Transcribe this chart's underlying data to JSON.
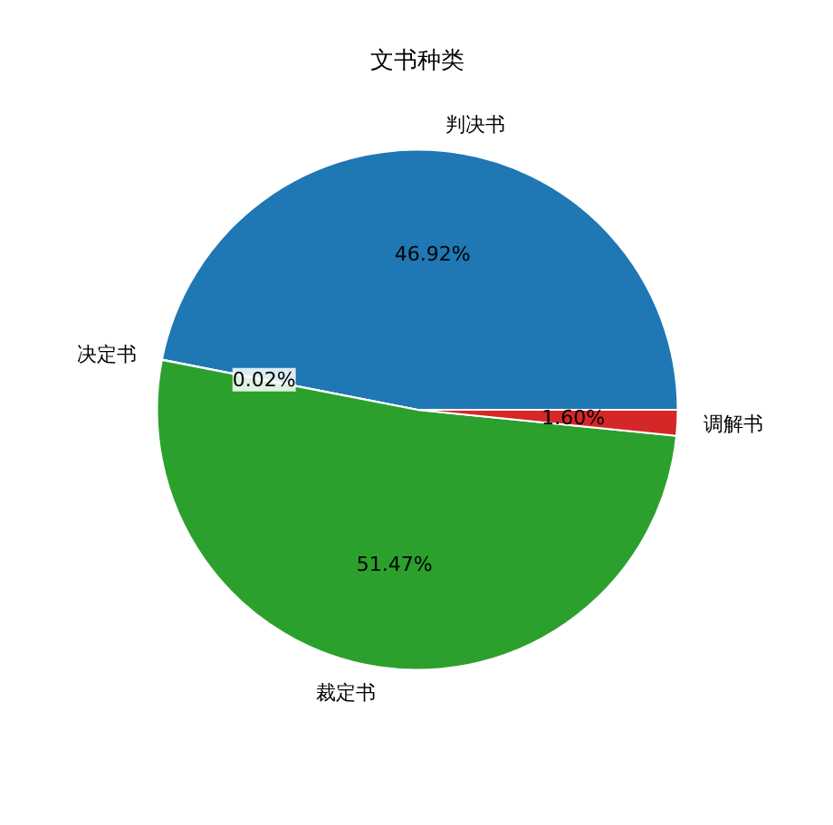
{
  "chart_data": {
    "type": "pie",
    "title": "文书种类",
    "categories": [
      "判决书",
      "决定书",
      "裁定书",
      "调解书"
    ],
    "values": [
      46.92,
      0.02,
      51.47,
      1.6
    ],
    "value_labels": [
      "46.92%",
      "0.02%",
      "51.47%",
      "1.60%"
    ],
    "colors": [
      "#1f77b4",
      "#ff7f0e",
      "#2ca02c",
      "#d62728"
    ]
  }
}
